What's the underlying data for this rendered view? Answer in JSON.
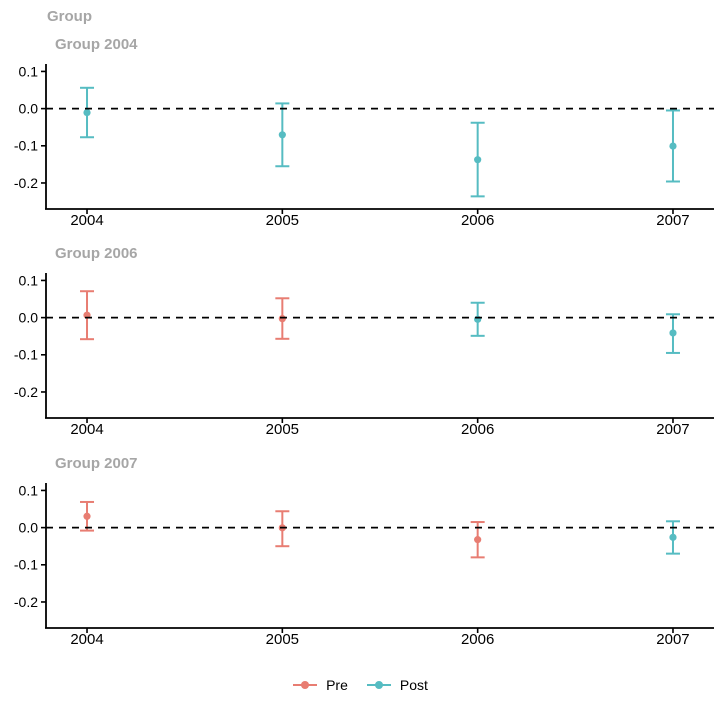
{
  "chart_data": {
    "type": "scatter",
    "subtype": "pointrange-errorbar-panels",
    "title": "Group",
    "xlabel": "",
    "ylabel": "",
    "xlim": [
      2003.79,
      2007.21
    ],
    "ylim": [
      -0.27,
      0.12
    ],
    "grid": false,
    "zero_line": {
      "value": 0,
      "style": "dashed",
      "color": "#000000"
    },
    "xticks": {
      "values": [
        2004,
        2005,
        2006,
        2007
      ],
      "labels": [
        "2004",
        "2005",
        "2006",
        "2007"
      ]
    },
    "yticks": {
      "values": [
        0.1,
        0.0,
        -0.1,
        -0.2
      ],
      "labels": [
        "0.1",
        "0.0",
        "-0.1",
        "-0.2"
      ]
    },
    "series_colors": {
      "Pre": "#e87d72",
      "Post": "#56bcc2"
    },
    "panels": [
      {
        "subtitle": "Group 2004",
        "points": [
          {
            "x": 2004,
            "y": -0.0105,
            "lo": -0.077,
            "hi": 0.056,
            "series": "Post"
          },
          {
            "x": 2005,
            "y": -0.0704,
            "lo": -0.155,
            "hi": 0.014,
            "series": "Post"
          },
          {
            "x": 2006,
            "y": -0.1373,
            "lo": -0.236,
            "hi": -0.038,
            "series": "Post"
          },
          {
            "x": 2007,
            "y": -0.1008,
            "lo": -0.196,
            "hi": -0.005,
            "series": "Post"
          }
        ]
      },
      {
        "subtitle": "Group 2006",
        "points": [
          {
            "x": 2004,
            "y": 0.0065,
            "lo": -0.058,
            "hi": 0.071,
            "series": "Pre"
          },
          {
            "x": 2005,
            "y": -0.0028,
            "lo": -0.057,
            "hi": 0.052,
            "series": "Pre"
          },
          {
            "x": 2006,
            "y": -0.0046,
            "lo": -0.049,
            "hi": 0.04,
            "series": "Post"
          },
          {
            "x": 2007,
            "y": -0.0412,
            "lo": -0.095,
            "hi": 0.009,
            "series": "Post"
          }
        ]
      },
      {
        "subtitle": "Group 2007",
        "points": [
          {
            "x": 2004,
            "y": 0.0305,
            "lo": -0.008,
            "hi": 0.069,
            "series": "Pre"
          },
          {
            "x": 2005,
            "y": -0.0006,
            "lo": -0.05,
            "hi": 0.044,
            "series": "Pre"
          },
          {
            "x": 2006,
            "y": -0.0323,
            "lo": -0.08,
            "hi": 0.015,
            "series": "Pre"
          },
          {
            "x": 2007,
            "y": -0.0261,
            "lo": -0.07,
            "hi": 0.017,
            "series": "Post"
          }
        ]
      }
    ],
    "legend": {
      "position": "bottom",
      "items": [
        {
          "label": "Pre",
          "color": "#e87d72"
        },
        {
          "label": "Post",
          "color": "#56bcc2"
        }
      ]
    }
  },
  "style": {
    "axis_color": "#000000",
    "tick_label_color": "#000000",
    "title_color": "#a6a6a6",
    "background": "#ffffff"
  }
}
